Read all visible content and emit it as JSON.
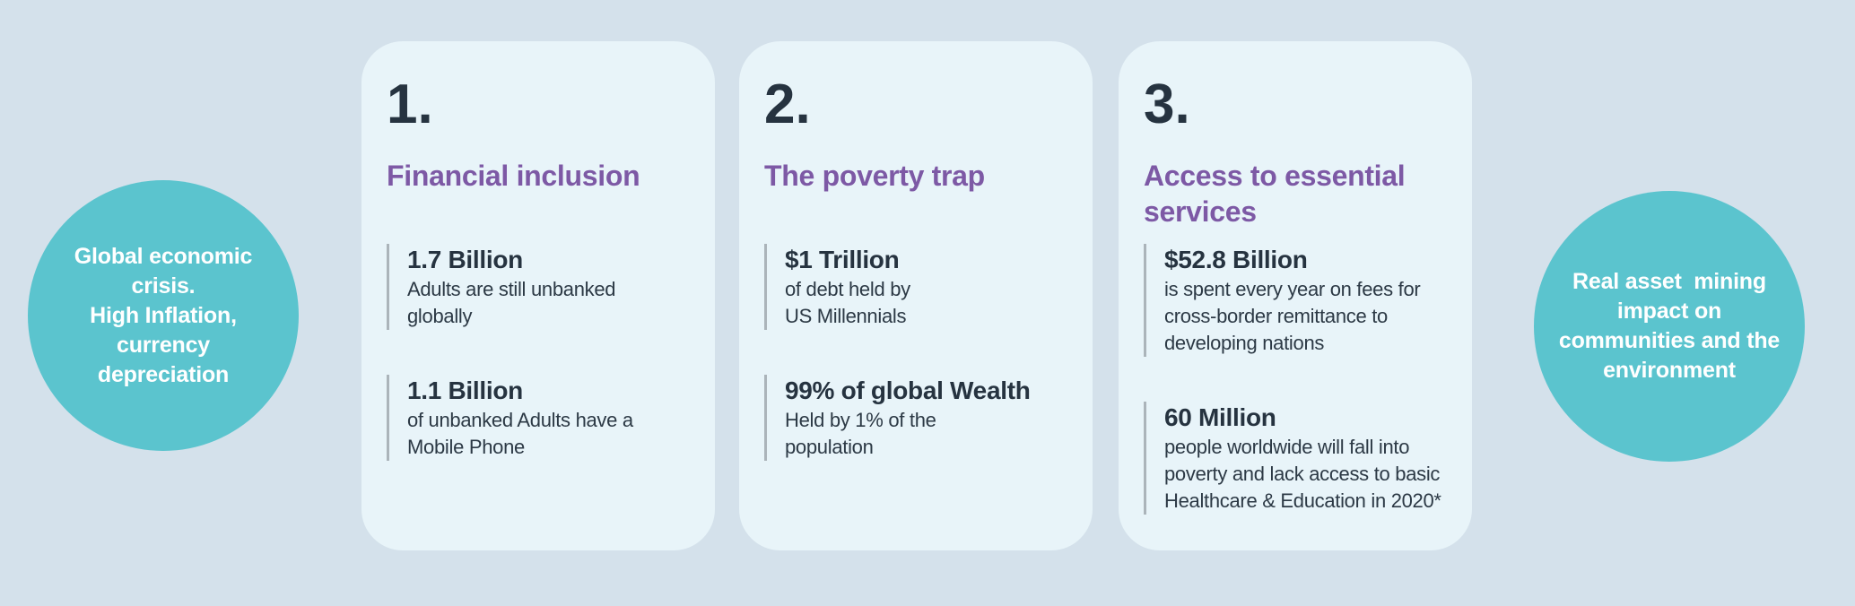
{
  "colors": {
    "page_background": "#D4E1EB",
    "card_background": "#E8F4F9",
    "circle_background": "#5BC4CE",
    "circle_text": "#FFFFFF",
    "heading_purple": "#7D59A5",
    "number_dark": "#263340",
    "body_text": "#2C3945",
    "stat_bar_gray": "#ABB4BA"
  },
  "left_circle": {
    "text": "Global economic\ncrisis.\nHigh Inflation,\ncurrency\ndepreciation"
  },
  "right_circle": {
    "text": "Real asset  mining\nimpact on\ncommunities and the\nenvironment"
  },
  "cards": [
    {
      "number": "1.",
      "title": "Financial inclusion",
      "stats": [
        {
          "value": "1.7 Billion",
          "description": "Adults are still unbanked\nglobally"
        },
        {
          "value": "1.1 Billion",
          "description": "of unbanked Adults have a\nMobile Phone"
        }
      ]
    },
    {
      "number": "2.",
      "title": "The poverty trap",
      "stats": [
        {
          "value": "$1 Trillion",
          "description": "of debt held by\nUS Millennials"
        },
        {
          "value": "99% of global Wealth",
          "description": "Held by 1% of the\npopulation"
        }
      ]
    },
    {
      "number": "3.",
      "title": "Access to essential\nservices",
      "stats": [
        {
          "value": "$52.8 Billion",
          "description": "is spent every year on fees for\ncross-border remittance to\ndeveloping nations"
        },
        {
          "value": "60 Million",
          "description": "people worldwide will fall into\npoverty and lack access to basic\nHealthcare & Education in 2020*"
        }
      ]
    }
  ]
}
